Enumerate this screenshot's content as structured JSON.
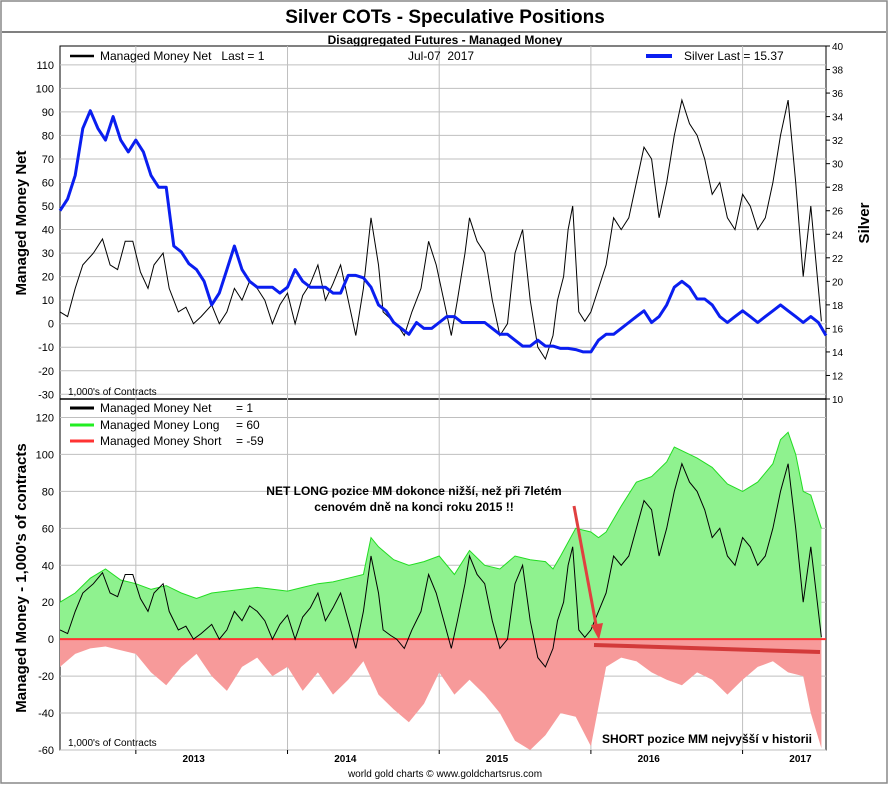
{
  "title": "Silver COTs - Speculative Positions",
  "subtitle": "Disaggregated Futures - Managed Money",
  "footer": "world gold charts © www.goldchartsrus.com",
  "x_axis": {
    "labels": [
      "2013",
      "2014",
      "2015",
      "2016",
      "2017"
    ],
    "start": 2012.5,
    "end": 2017.55
  },
  "top_panel": {
    "ylabel_left": "Managed Money Net",
    "ylabel_right": "Silver",
    "units_note": "1,000's of Contracts",
    "date_label": "Jul-07  2017",
    "legend_left": "Managed Money Net   Last = 1",
    "legend_right": "Silver Last = 15.37",
    "left_ticks": [
      "-30",
      "-20",
      "-10",
      "0",
      "10",
      "20",
      "30",
      "40",
      "50",
      "60",
      "70",
      "80",
      "90",
      "100",
      "110"
    ],
    "right_ticks": [
      "10",
      "12",
      "14",
      "16",
      "18",
      "20",
      "22",
      "24",
      "26",
      "28",
      "30",
      "32",
      "34",
      "36",
      "38",
      "40"
    ],
    "ylim_left": [
      -32,
      118
    ],
    "ylim_right": [
      10,
      40
    ]
  },
  "bottom_panel": {
    "ylabel": "Managed Money - 1,000's of contracts",
    "units_note": "1,000's of Contracts",
    "ticks": [
      "-60",
      "-40",
      "-20",
      "0",
      "20",
      "40",
      "60",
      "80",
      "100",
      "120"
    ],
    "ylim": [
      -60,
      130
    ],
    "legend": [
      {
        "label": "Managed Money Net",
        "value": "= 1"
      },
      {
        "label": "Managed Money Long",
        "value": "= 60"
      },
      {
        "label": "Managed Money Short",
        "value": "= -59"
      }
    ],
    "annotation_1_line1": "NET LONG pozice MM dokonce nižší, než při 7letém",
    "annotation_1_line2": "cenovém dně na konci roku 2015 !!",
    "annotation_2": "SHORT pozice MM nejvyšší v historii"
  },
  "colors": {
    "net": "#000000",
    "silver": "#0a1ef0",
    "long_fill": "#8ff28f",
    "long_line": "#22dd22",
    "short_fill": "#f79a9a",
    "short_line": "#ff3333",
    "arrow": "#e04040"
  },
  "chart_data": [
    {
      "type": "line",
      "title": "Silver COTs - Speculative Positions",
      "subtitle": "Disaggregated Futures - Managed Money",
      "ylabel": "Managed Money Net",
      "y2label": "Silver",
      "series": [
        {
          "name": "Managed Money Net",
          "axis": "left",
          "x": [
            2012.5,
            2012.55,
            2012.6,
            2012.65,
            2012.72,
            2012.78,
            2012.83,
            2012.88,
            2012.93,
            2012.98,
            2013.03,
            2013.08,
            2013.12,
            2013.18,
            2013.22,
            2013.28,
            2013.33,
            2013.38,
            2013.43,
            2013.5,
            2013.55,
            2013.6,
            2013.65,
            2013.7,
            2013.75,
            2013.8,
            2013.85,
            2013.9,
            2013.95,
            2014.0,
            2014.05,
            2014.1,
            2014.15,
            2014.2,
            2014.25,
            2014.3,
            2014.35,
            2014.4,
            2014.45,
            2014.5,
            2014.55,
            2014.6,
            2014.63,
            2014.68,
            2014.72,
            2014.77,
            2014.82,
            2014.88,
            2014.93,
            2014.98,
            2015.03,
            2015.08,
            2015.12,
            2015.17,
            2015.2,
            2015.25,
            2015.3,
            2015.35,
            2015.4,
            2015.45,
            2015.5,
            2015.55,
            2015.6,
            2015.65,
            2015.7,
            2015.75,
            2015.78,
            2015.82,
            2015.85,
            2015.88,
            2015.92,
            2015.96,
            2016.0,
            2016.05,
            2016.1,
            2016.15,
            2016.2,
            2016.25,
            2016.3,
            2016.35,
            2016.4,
            2016.45,
            2016.5,
            2016.55,
            2016.6,
            2016.65,
            2016.7,
            2016.75,
            2016.8,
            2016.85,
            2016.9,
            2016.95,
            2017.0,
            2017.05,
            2017.1,
            2017.15,
            2017.2,
            2017.25,
            2017.3,
            2017.35,
            2017.4,
            2017.45,
            2017.52
          ],
          "y": [
            5,
            3,
            15,
            25,
            30,
            36,
            25,
            23,
            35,
            35,
            22,
            15,
            25,
            30,
            15,
            5,
            7,
            0,
            3,
            8,
            0,
            5,
            15,
            10,
            18,
            15,
            10,
            0,
            8,
            13,
            0,
            12,
            17,
            25,
            10,
            17,
            25,
            10,
            -5,
            15,
            45,
            25,
            5,
            2,
            0,
            -5,
            5,
            15,
            35,
            25,
            10,
            -5,
            10,
            30,
            45,
            35,
            30,
            10,
            -5,
            0,
            30,
            40,
            10,
            -10,
            -15,
            -5,
            10,
            20,
            40,
            50,
            5,
            1,
            5,
            15,
            25,
            45,
            40,
            45,
            60,
            75,
            70,
            45,
            60,
            80,
            95,
            85,
            80,
            70,
            55,
            60,
            45,
            40,
            55,
            50,
            40,
            45,
            60,
            80,
            95,
            60,
            20,
            50,
            1
          ]
        },
        {
          "name": "Silver",
          "axis": "right",
          "x": [
            2012.5,
            2012.55,
            2012.6,
            2012.65,
            2012.7,
            2012.75,
            2012.8,
            2012.85,
            2012.9,
            2012.95,
            2013.0,
            2013.05,
            2013.1,
            2013.15,
            2013.2,
            2013.25,
            2013.3,
            2013.35,
            2013.4,
            2013.45,
            2013.5,
            2013.55,
            2013.6,
            2013.65,
            2013.7,
            2013.75,
            2013.8,
            2013.85,
            2013.9,
            2013.95,
            2014.0,
            2014.05,
            2014.1,
            2014.15,
            2014.2,
            2014.25,
            2014.3,
            2014.35,
            2014.4,
            2014.45,
            2014.5,
            2014.55,
            2014.6,
            2014.65,
            2014.7,
            2014.75,
            2014.8,
            2014.85,
            2014.9,
            2014.95,
            2015.0,
            2015.05,
            2015.1,
            2015.15,
            2015.2,
            2015.25,
            2015.3,
            2015.35,
            2015.4,
            2015.45,
            2015.5,
            2015.55,
            2015.6,
            2015.65,
            2015.7,
            2015.75,
            2015.8,
            2015.85,
            2015.9,
            2015.95,
            2016.0,
            2016.05,
            2016.1,
            2016.15,
            2016.2,
            2016.25,
            2016.3,
            2016.35,
            2016.4,
            2016.45,
            2016.5,
            2016.55,
            2016.6,
            2016.65,
            2016.7,
            2016.75,
            2016.8,
            2016.85,
            2016.9,
            2016.95,
            2017.0,
            2017.05,
            2017.1,
            2017.15,
            2017.2,
            2017.25,
            2017.3,
            2017.35,
            2017.4,
            2017.45,
            2017.5,
            2017.55
          ],
          "y": [
            26,
            27,
            29,
            33,
            34.5,
            33,
            32,
            34,
            32,
            31,
            32,
            31,
            29,
            28,
            28,
            23,
            22.5,
            21.5,
            21,
            20,
            18,
            19,
            21,
            23,
            21,
            20,
            19.5,
            19.5,
            19.5,
            19,
            19.5,
            21,
            20,
            19.5,
            19.5,
            19.5,
            19,
            19,
            20.5,
            20.5,
            20.3,
            19.5,
            18,
            17.5,
            16.5,
            16,
            15.5,
            16.5,
            16,
            16,
            16.5,
            17,
            17,
            16.5,
            16.5,
            16.5,
            16.5,
            16,
            15.5,
            15.5,
            15,
            14.5,
            14.5,
            15,
            14.5,
            14.5,
            14.3,
            14.3,
            14.2,
            14,
            14,
            15,
            15.5,
            15.5,
            16,
            16.5,
            17,
            17.5,
            16.5,
            17,
            18,
            19.5,
            20,
            19.5,
            18.5,
            18.5,
            18,
            17,
            16.5,
            17,
            17.5,
            17,
            16.5,
            17,
            17.5,
            18,
            17.5,
            17,
            16.5,
            17,
            16.5,
            15.4
          ]
        }
      ],
      "ylim": [
        -32,
        118
      ],
      "y2lim": [
        10,
        40
      ]
    },
    {
      "type": "area",
      "ylabel": "Managed Money - 1,000's of contracts",
      "series": [
        {
          "name": "Managed Money Long",
          "x": [
            2012.5,
            2012.6,
            2012.7,
            2012.8,
            2012.9,
            2013.0,
            2013.1,
            2013.2,
            2013.3,
            2013.4,
            2013.5,
            2013.6,
            2013.7,
            2013.8,
            2013.9,
            2014.0,
            2014.1,
            2014.2,
            2014.3,
            2014.4,
            2014.5,
            2014.55,
            2014.6,
            2014.7,
            2014.8,
            2014.9,
            2015.0,
            2015.1,
            2015.2,
            2015.3,
            2015.4,
            2015.5,
            2015.6,
            2015.7,
            2015.75,
            2015.8,
            2015.9,
            2016.0,
            2016.05,
            2016.1,
            2016.2,
            2016.3,
            2016.4,
            2016.5,
            2016.55,
            2016.6,
            2016.7,
            2016.8,
            2016.9,
            2017.0,
            2017.1,
            2017.2,
            2017.25,
            2017.3,
            2017.35,
            2017.4,
            2017.45,
            2017.52
          ],
          "y": [
            20,
            25,
            33,
            38,
            32,
            30,
            27,
            29,
            25,
            22,
            25,
            26,
            27,
            28,
            27,
            26,
            28,
            30,
            31,
            33,
            35,
            55,
            50,
            43,
            40,
            42,
            45,
            35,
            48,
            40,
            38,
            45,
            43,
            42,
            38,
            45,
            60,
            58,
            55,
            58,
            72,
            85,
            88,
            96,
            104,
            102,
            98,
            93,
            84,
            80,
            85,
            95,
            108,
            112,
            100,
            80,
            78,
            60
          ]
        },
        {
          "name": "Managed Money Short",
          "x": [
            2012.5,
            2012.6,
            2012.7,
            2012.8,
            2012.9,
            2013.0,
            2013.1,
            2013.2,
            2013.3,
            2013.4,
            2013.5,
            2013.6,
            2013.7,
            2013.8,
            2013.9,
            2014.0,
            2014.1,
            2014.2,
            2014.3,
            2014.4,
            2014.5,
            2014.6,
            2014.7,
            2014.8,
            2014.9,
            2015.0,
            2015.1,
            2015.2,
            2015.3,
            2015.4,
            2015.5,
            2015.6,
            2015.7,
            2015.8,
            2015.9,
            2016.0,
            2016.1,
            2016.2,
            2016.3,
            2016.4,
            2016.5,
            2016.6,
            2016.7,
            2016.8,
            2016.9,
            2017.0,
            2017.1,
            2017.2,
            2017.3,
            2017.4,
            2017.45,
            2017.52
          ],
          "y": [
            -15,
            -8,
            -5,
            -4,
            -6,
            -8,
            -18,
            -25,
            -15,
            -8,
            -20,
            -28,
            -15,
            -10,
            -20,
            -15,
            -28,
            -18,
            -30,
            -22,
            -12,
            -30,
            -38,
            -45,
            -35,
            -18,
            -30,
            -22,
            -30,
            -40,
            -55,
            -60,
            -52,
            -40,
            -42,
            -58,
            -15,
            -10,
            -12,
            -18,
            -22,
            -25,
            -18,
            -22,
            -30,
            -22,
            -15,
            -12,
            -18,
            -20,
            -40,
            -59
          ]
        },
        {
          "name": "Managed Money Net",
          "x": [
            2012.5,
            2012.55,
            2012.6,
            2012.65,
            2012.72,
            2012.78,
            2012.83,
            2012.88,
            2012.93,
            2012.98,
            2013.03,
            2013.08,
            2013.12,
            2013.18,
            2013.22,
            2013.28,
            2013.33,
            2013.38,
            2013.43,
            2013.5,
            2013.55,
            2013.6,
            2013.65,
            2013.7,
            2013.75,
            2013.8,
            2013.85,
            2013.9,
            2013.95,
            2014.0,
            2014.05,
            2014.1,
            2014.15,
            2014.2,
            2014.25,
            2014.3,
            2014.35,
            2014.4,
            2014.45,
            2014.5,
            2014.55,
            2014.6,
            2014.63,
            2014.68,
            2014.72,
            2014.77,
            2014.82,
            2014.88,
            2014.93,
            2014.98,
            2015.03,
            2015.08,
            2015.12,
            2015.17,
            2015.2,
            2015.25,
            2015.3,
            2015.35,
            2015.4,
            2015.45,
            2015.5,
            2015.55,
            2015.6,
            2015.65,
            2015.7,
            2015.75,
            2015.78,
            2015.82,
            2015.85,
            2015.88,
            2015.92,
            2015.96,
            2016.0,
            2016.05,
            2016.1,
            2016.15,
            2016.2,
            2016.25,
            2016.3,
            2016.35,
            2016.4,
            2016.45,
            2016.5,
            2016.55,
            2016.6,
            2016.65,
            2016.7,
            2016.75,
            2016.8,
            2016.85,
            2016.9,
            2016.95,
            2017.0,
            2017.05,
            2017.1,
            2017.15,
            2017.2,
            2017.25,
            2017.3,
            2017.35,
            2017.4,
            2017.45,
            2017.52
          ],
          "y": [
            5,
            3,
            15,
            25,
            30,
            36,
            25,
            23,
            35,
            35,
            22,
            15,
            25,
            30,
            15,
            5,
            7,
            0,
            3,
            8,
            0,
            5,
            15,
            10,
            18,
            15,
            10,
            0,
            8,
            13,
            0,
            12,
            17,
            25,
            10,
            17,
            25,
            10,
            -5,
            15,
            45,
            25,
            5,
            2,
            0,
            -5,
            5,
            15,
            35,
            25,
            10,
            -5,
            10,
            30,
            45,
            35,
            30,
            10,
            -5,
            0,
            30,
            40,
            10,
            -10,
            -15,
            -5,
            10,
            20,
            40,
            50,
            5,
            1,
            5,
            15,
            25,
            45,
            40,
            45,
            60,
            75,
            70,
            45,
            60,
            80,
            95,
            85,
            80,
            70,
            55,
            60,
            45,
            40,
            55,
            50,
            40,
            45,
            60,
            80,
            95,
            60,
            20,
            50,
            1
          ]
        }
      ],
      "ylim": [
        -60,
        130
      ]
    }
  ]
}
